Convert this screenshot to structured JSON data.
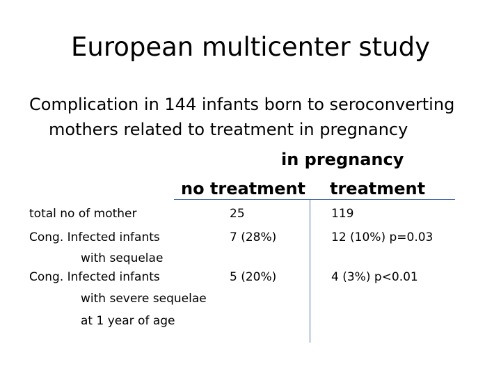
{
  "slide": {
    "title": "European multicenter study",
    "subtitle_line1": "Complication in 144 infants born to seroconverting",
    "subtitle_line2": "mothers related to treatment in pregnancy"
  },
  "table": {
    "header_group": "in pregnancy",
    "col_no_treatment": "no treatment",
    "col_treatment": "treatment",
    "rows": [
      {
        "label": "total no of mother",
        "no_treatment": "25",
        "treatment": "119"
      },
      {
        "label": "Cong. Infected infants",
        "label_cont1": "with sequelae",
        "no_treatment": "7 (28%)",
        "treatment": "12 (10%)   p=0.03"
      },
      {
        "label": "Cong. Infected infants",
        "label_cont1": "with severe sequelae",
        "label_cont2": "at 1 year of age",
        "no_treatment": "5 (20%)",
        "treatment": "4 (3%)  p<0.01"
      }
    ]
  }
}
